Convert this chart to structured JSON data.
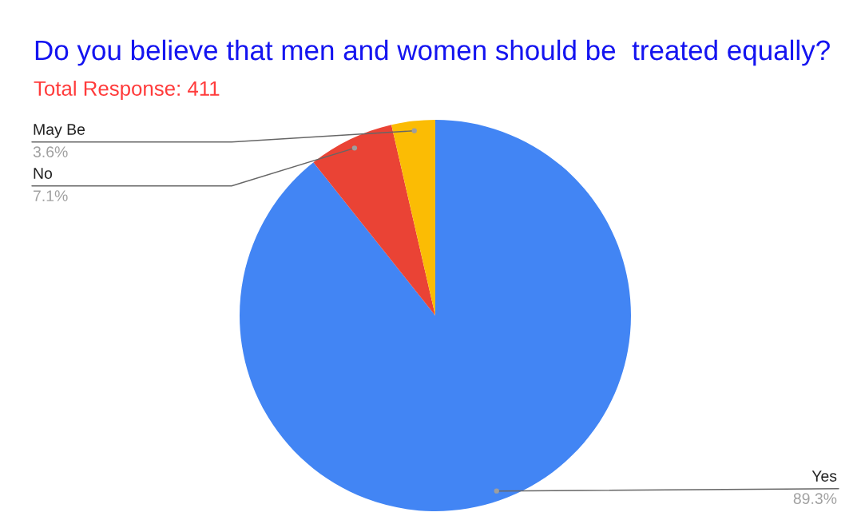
{
  "chart_data": {
    "type": "pie",
    "title": "Do you believe that men and women should be  treated equally?",
    "subtitle": "Total Response: 411",
    "categories": [
      "Yes",
      "No",
      "May Be"
    ],
    "values": [
      89.3,
      7.1,
      3.6
    ],
    "value_labels": [
      "89.3%",
      "7.1%",
      "3.6%"
    ],
    "colors": [
      "#4285f4",
      "#ea4335",
      "#fbbc04"
    ]
  }
}
